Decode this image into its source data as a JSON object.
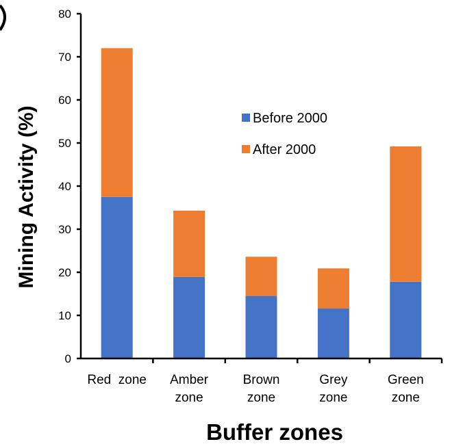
{
  "chart_data": {
    "type": "bar",
    "stacked": true,
    "categories": [
      [
        "Red  zone"
      ],
      [
        "Amber",
        "zone"
      ],
      [
        "Brown",
        "zone"
      ],
      [
        "Grey",
        "zone"
      ],
      [
        "Green",
        "zone"
      ]
    ],
    "series": [
      {
        "name": "Before 2000",
        "color": "#4472C4",
        "values": [
          37.5,
          18.9,
          14.5,
          11.6,
          17.8
        ]
      },
      {
        "name": "After 2000",
        "color": "#ED7D31",
        "values": [
          34.5,
          15.4,
          9.1,
          9.3,
          31.4
        ]
      }
    ],
    "xlabel": "Buffer zones",
    "ylabel": "Mining Activity (%)",
    "ylim": [
      0,
      80
    ],
    "yticks": [
      "0",
      "10",
      "20",
      "30",
      "40",
      "50",
      "60",
      "70",
      "80"
    ],
    "grid": false,
    "legend_position": "center-right"
  }
}
